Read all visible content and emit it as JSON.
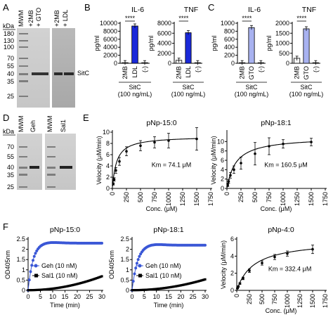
{
  "figure": {
    "panel_labels": [
      "A",
      "B",
      "C",
      "D",
      "E",
      "F"
    ],
    "gel_a": {
      "kda_label": "kDa",
      "ladder": [
        "180",
        "130",
        "100",
        "70",
        "55",
        "40",
        "35",
        "25"
      ],
      "lanes_left": [
        "MWM",
        "+2MB",
        "+ GTO"
      ],
      "lanes_right": [
        "+2MB",
        "+ LDL"
      ],
      "band_label": "SitC"
    },
    "gel_d": {
      "kda_label": "kDa",
      "ladder": [
        "70",
        "55",
        "40",
        "35",
        "25"
      ],
      "lanes_left": [
        "MWM",
        "Geh"
      ],
      "lanes_right": [
        "MWM",
        "Sal1"
      ]
    }
  },
  "chart_data": [
    {
      "id": "B-IL6",
      "type": "bar",
      "title": "IL-6",
      "ylabel": "pg/ml",
      "categories": [
        "2MB",
        "LDL",
        "(-)"
      ],
      "values": [
        150,
        9300,
        0
      ],
      "yticks": [
        0,
        2000,
        4000,
        6000,
        8000,
        10000
      ],
      "ylim": [
        0,
        10000
      ],
      "significance": "****",
      "footer": "SitC",
      "footer_sub": "(100 ng/mL)",
      "colors": [
        "#f5f5f5",
        "#1a29d9",
        "#ffffff"
      ]
    },
    {
      "id": "B-TNF",
      "type": "bar",
      "title": "TNF",
      "ylabel": "pg/ml",
      "categories": [
        "2MB",
        "LDL",
        "(-)"
      ],
      "values": [
        600,
        6100,
        0
      ],
      "yticks": [
        0,
        2000,
        4000,
        6000,
        8000
      ],
      "ylim": [
        0,
        8000
      ],
      "significance": "****",
      "footer": "SitC",
      "footer_sub": "(100 ng/mL)",
      "colors": [
        "#f5f5f5",
        "#1a29d9",
        "#ffffff"
      ]
    },
    {
      "id": "C-IL6",
      "type": "bar",
      "title": "IL-6",
      "ylabel": "pg/ml",
      "categories": [
        "2MB",
        "GTO",
        "(-)"
      ],
      "values": [
        10,
        890,
        0
      ],
      "yticks": [
        0,
        200,
        400,
        600,
        800,
        1000
      ],
      "ylim": [
        0,
        1000
      ],
      "significance": "****",
      "footer": "SitC",
      "footer_sub": "(100 ng/mL)",
      "colors": [
        "#f5f5f5",
        "#a8b2f0",
        "#ffffff"
      ]
    },
    {
      "id": "C-TNF",
      "type": "bar",
      "title": "TNF",
      "ylabel": "pg/ml",
      "categories": [
        "2MB",
        "GTO",
        "(-)"
      ],
      "values": [
        250,
        1720,
        0
      ],
      "yticks": [
        0,
        500,
        1000,
        1500,
        2000
      ],
      "ylim": [
        0,
        2000
      ],
      "significance": "****",
      "footer": "SitC",
      "footer_sub": "(100 ng/mL)",
      "colors": [
        "#f5f5f5",
        "#a8b2f0",
        "#ffffff"
      ]
    },
    {
      "id": "E-15",
      "type": "scatter",
      "title": "pNp-15:0",
      "xlabel": "Conc. (μM)",
      "ylabel": "Velocity (μM/min)",
      "xticks": [
        0,
        250,
        500,
        750,
        1000,
        1250,
        1500,
        1750
      ],
      "xlim": [
        0,
        1750
      ],
      "yticks": [
        0,
        2,
        4,
        6,
        8,
        10
      ],
      "ylim": [
        0,
        10
      ],
      "points": [
        [
          15,
          0.8
        ],
        [
          31,
          1.6
        ],
        [
          62,
          3.2
        ],
        [
          125,
          4.8
        ],
        [
          250,
          6.6
        ],
        [
          500,
          7.6
        ],
        [
          750,
          8.2
        ],
        [
          1000,
          8.5
        ],
        [
          1500,
          8.8
        ]
      ],
      "errors": [
        0.2,
        0.3,
        0.5,
        0.7,
        0.8,
        0.9,
        1.0,
        1.3,
        2.0
      ],
      "fit": {
        "model": "Michaelis-Menten",
        "vmax": 9.3,
        "km": 74.1
      },
      "annotation": "Km = 74.1 μM"
    },
    {
      "id": "E-18",
      "type": "scatter",
      "title": "pNp-18:1",
      "xlabel": "Conc. (μM)",
      "ylabel": "Velocity (μM/min)",
      "xticks": [
        0,
        250,
        500,
        750,
        1000,
        1250,
        1500,
        1750
      ],
      "xlim": [
        0,
        1750
      ],
      "yticks": [
        0,
        2,
        4,
        6,
        8,
        10
      ],
      "ylim": [
        0,
        12
      ],
      "points": [
        [
          15,
          0.7
        ],
        [
          31,
          1.5
        ],
        [
          62,
          2.8
        ],
        [
          125,
          4.0
        ],
        [
          250,
          5.4
        ],
        [
          500,
          7.4
        ],
        [
          750,
          9.0
        ],
        [
          1000,
          9.5
        ],
        [
          1500,
          9.9
        ]
      ],
      "errors": [
        0.3,
        0.4,
        0.6,
        0.8,
        1.3,
        2.4,
        1.8,
        0.9,
        0.8
      ],
      "fit": {
        "model": "Michaelis-Menten",
        "vmax": 11.0,
        "km": 160.5
      },
      "annotation": "Km = 160.5 μM"
    },
    {
      "id": "F-15",
      "type": "line",
      "title": "pNp-15:0",
      "xlabel": "Time (min)",
      "ylabel": "OD405nm",
      "xticks": [
        0,
        5,
        10,
        15,
        20,
        25,
        30
      ],
      "xlim": [
        0,
        30
      ],
      "yticks": [
        0.0,
        0.5,
        1.0,
        1.5,
        2.0,
        2.5
      ],
      "ylim": [
        0,
        2.5
      ],
      "series": [
        {
          "name": "Geh (10 nM)",
          "color": "#3a57d6",
          "marker": "circle",
          "plateau": 2.3,
          "rate": 0.5,
          "overshoot": 0.05
        },
        {
          "name": "Sal1 (10 nM)",
          "color": "#000000",
          "marker": "square",
          "slope": 0.0045
        }
      ]
    },
    {
      "id": "F-18",
      "type": "line",
      "title": "pNp-18:1",
      "xlabel": "Time (min)",
      "ylabel": "OD405nm",
      "xticks": [
        0,
        5,
        10,
        15,
        20,
        25,
        30
      ],
      "xlim": [
        0,
        30
      ],
      "yticks": [
        0.0,
        0.5,
        1.0,
        1.5,
        2.0,
        2.5
      ],
      "ylim": [
        0,
        2.5
      ],
      "series": [
        {
          "name": "Geh (10 nM)",
          "color": "#3a57d6",
          "marker": "circle",
          "plateau": 2.2,
          "rate": 0.45,
          "overshoot": 0.06
        },
        {
          "name": "Sal1 (10 nM)",
          "color": "#000000",
          "marker": "square",
          "slope": 0.0035
        }
      ]
    },
    {
      "id": "F-4",
      "type": "scatter",
      "title": "pNp-4:0",
      "xlabel": "Conc. (μM)",
      "ylabel": "Velocity (μM/min)",
      "xticks": [
        0,
        250,
        500,
        750,
        1000,
        1250,
        1500,
        1750
      ],
      "xlim": [
        0,
        1750
      ],
      "yticks": [
        0,
        2,
        4,
        6
      ],
      "ylim": [
        0,
        6
      ],
      "points": [
        [
          15,
          0.25
        ],
        [
          31,
          0.45
        ],
        [
          62,
          0.8
        ],
        [
          125,
          1.4
        ],
        [
          250,
          2.3
        ],
        [
          500,
          3.2
        ],
        [
          750,
          3.9
        ],
        [
          1000,
          4.3
        ],
        [
          1500,
          4.8
        ]
      ],
      "errors": [
        0.05,
        0.08,
        0.1,
        0.15,
        0.2,
        0.25,
        0.3,
        0.3,
        0.5
      ],
      "fit": {
        "model": "Michaelis-Menten",
        "vmax": 5.9,
        "km": 332.4
      },
      "annotation": "Km = 332.4 μM"
    }
  ]
}
